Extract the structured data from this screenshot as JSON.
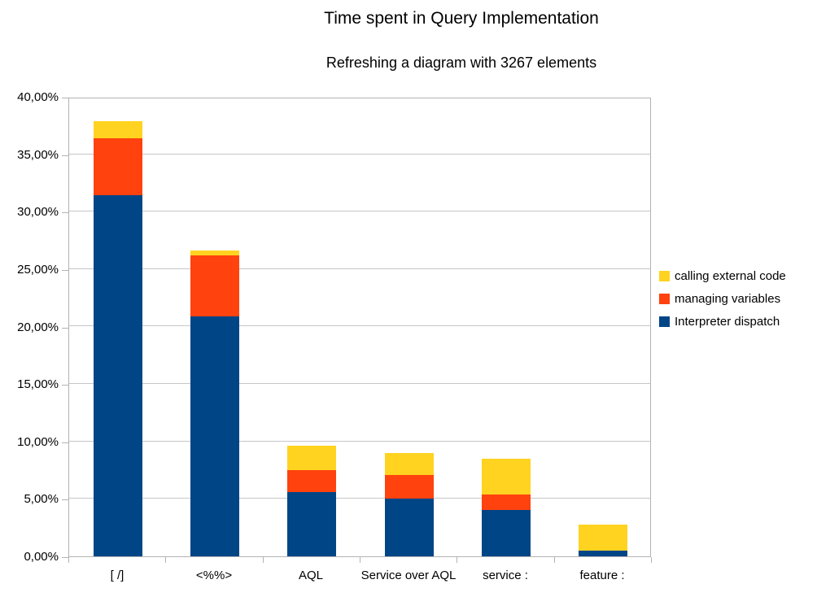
{
  "chart_data": {
    "type": "bar",
    "stacked": true,
    "title": "Time spent in Query Implementation",
    "subtitle": "Refreshing a diagram with 3267 elements",
    "categories": [
      "[ /]",
      "<%%>",
      "AQL",
      "Service over AQL",
      "service :",
      "feature :"
    ],
    "series": [
      {
        "name": "Interpreter dispatch",
        "color": "#004586",
        "values": [
          31.4,
          20.9,
          5.6,
          5.0,
          4.0,
          0.5
        ]
      },
      {
        "name": "managing variables",
        "color": "#FF420E",
        "values": [
          5.0,
          5.3,
          1.9,
          2.1,
          1.4,
          0.0
        ]
      },
      {
        "name": "calling external code",
        "color": "#FFD320",
        "values": [
          1.5,
          0.4,
          2.1,
          1.9,
          3.1,
          2.3
        ]
      }
    ],
    "y_axis": {
      "min": 0,
      "max": 40,
      "step": 5,
      "tick_labels": [
        "40,00%",
        "35,00%",
        "30,00%",
        "25,00%",
        "20,00%",
        "15,00%",
        "10,00%",
        "5,00%",
        "0,00%"
      ]
    },
    "legend_position": "right",
    "legend_order_top_to_bottom": [
      "calling external code",
      "managing variables",
      "Interpreter dispatch"
    ],
    "grid": "horizontal"
  }
}
